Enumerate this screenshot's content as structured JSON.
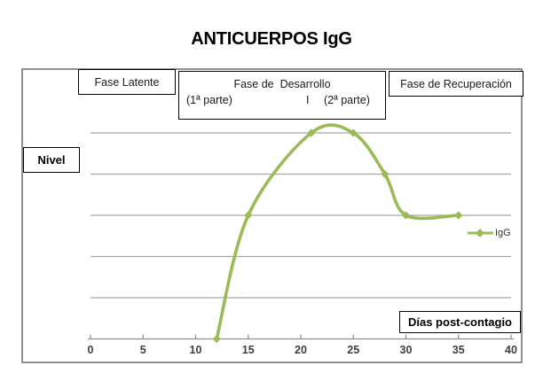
{
  "title": "ANTICUERPOS IgG",
  "phases": {
    "latente": "Fase Latente",
    "desarrollo_line1": "Fase de  Desarrollo",
    "desarrollo_parte1": "(1ª parte)",
    "desarrollo_sep": "I",
    "desarrollo_parte2": "(2ª parte)",
    "recuperacion": "Fase de Recuperación"
  },
  "axis_labels": {
    "y": "Nivel",
    "x": "Días post-contagio"
  },
  "legend": {
    "series": "IgG"
  },
  "colors": {
    "line": "#9BBB59",
    "gridline": "#A6A6A6",
    "axis": "#8f8f8f",
    "tick_label": "#3F3F3F"
  },
  "chart_data": {
    "type": "line",
    "title": "ANTICUERPOS IgG",
    "xlabel": "Días post-contagio",
    "ylabel": "Nivel",
    "series": [
      {
        "name": "IgG",
        "points": [
          [
            12,
            0
          ],
          [
            15,
            3
          ],
          [
            21,
            5
          ],
          [
            25,
            5
          ],
          [
            28,
            4
          ],
          [
            30,
            3
          ],
          [
            35,
            3
          ]
        ]
      }
    ],
    "x_ticks": [
      0,
      5,
      10,
      15,
      20,
      25,
      30,
      35,
      40
    ],
    "xlim": [
      0,
      40
    ],
    "ylim": [
      0,
      5.5
    ],
    "gridlines_y": [
      1,
      2,
      3,
      4,
      5
    ],
    "grid": "horizontal-only",
    "legend_position": "right",
    "marker": "diamond",
    "smooth": true,
    "annotations": [
      "Fase Latente",
      "Fase de Desarrollo (1ª parte) I (2ª parte)",
      "Fase de Recuperación"
    ]
  }
}
